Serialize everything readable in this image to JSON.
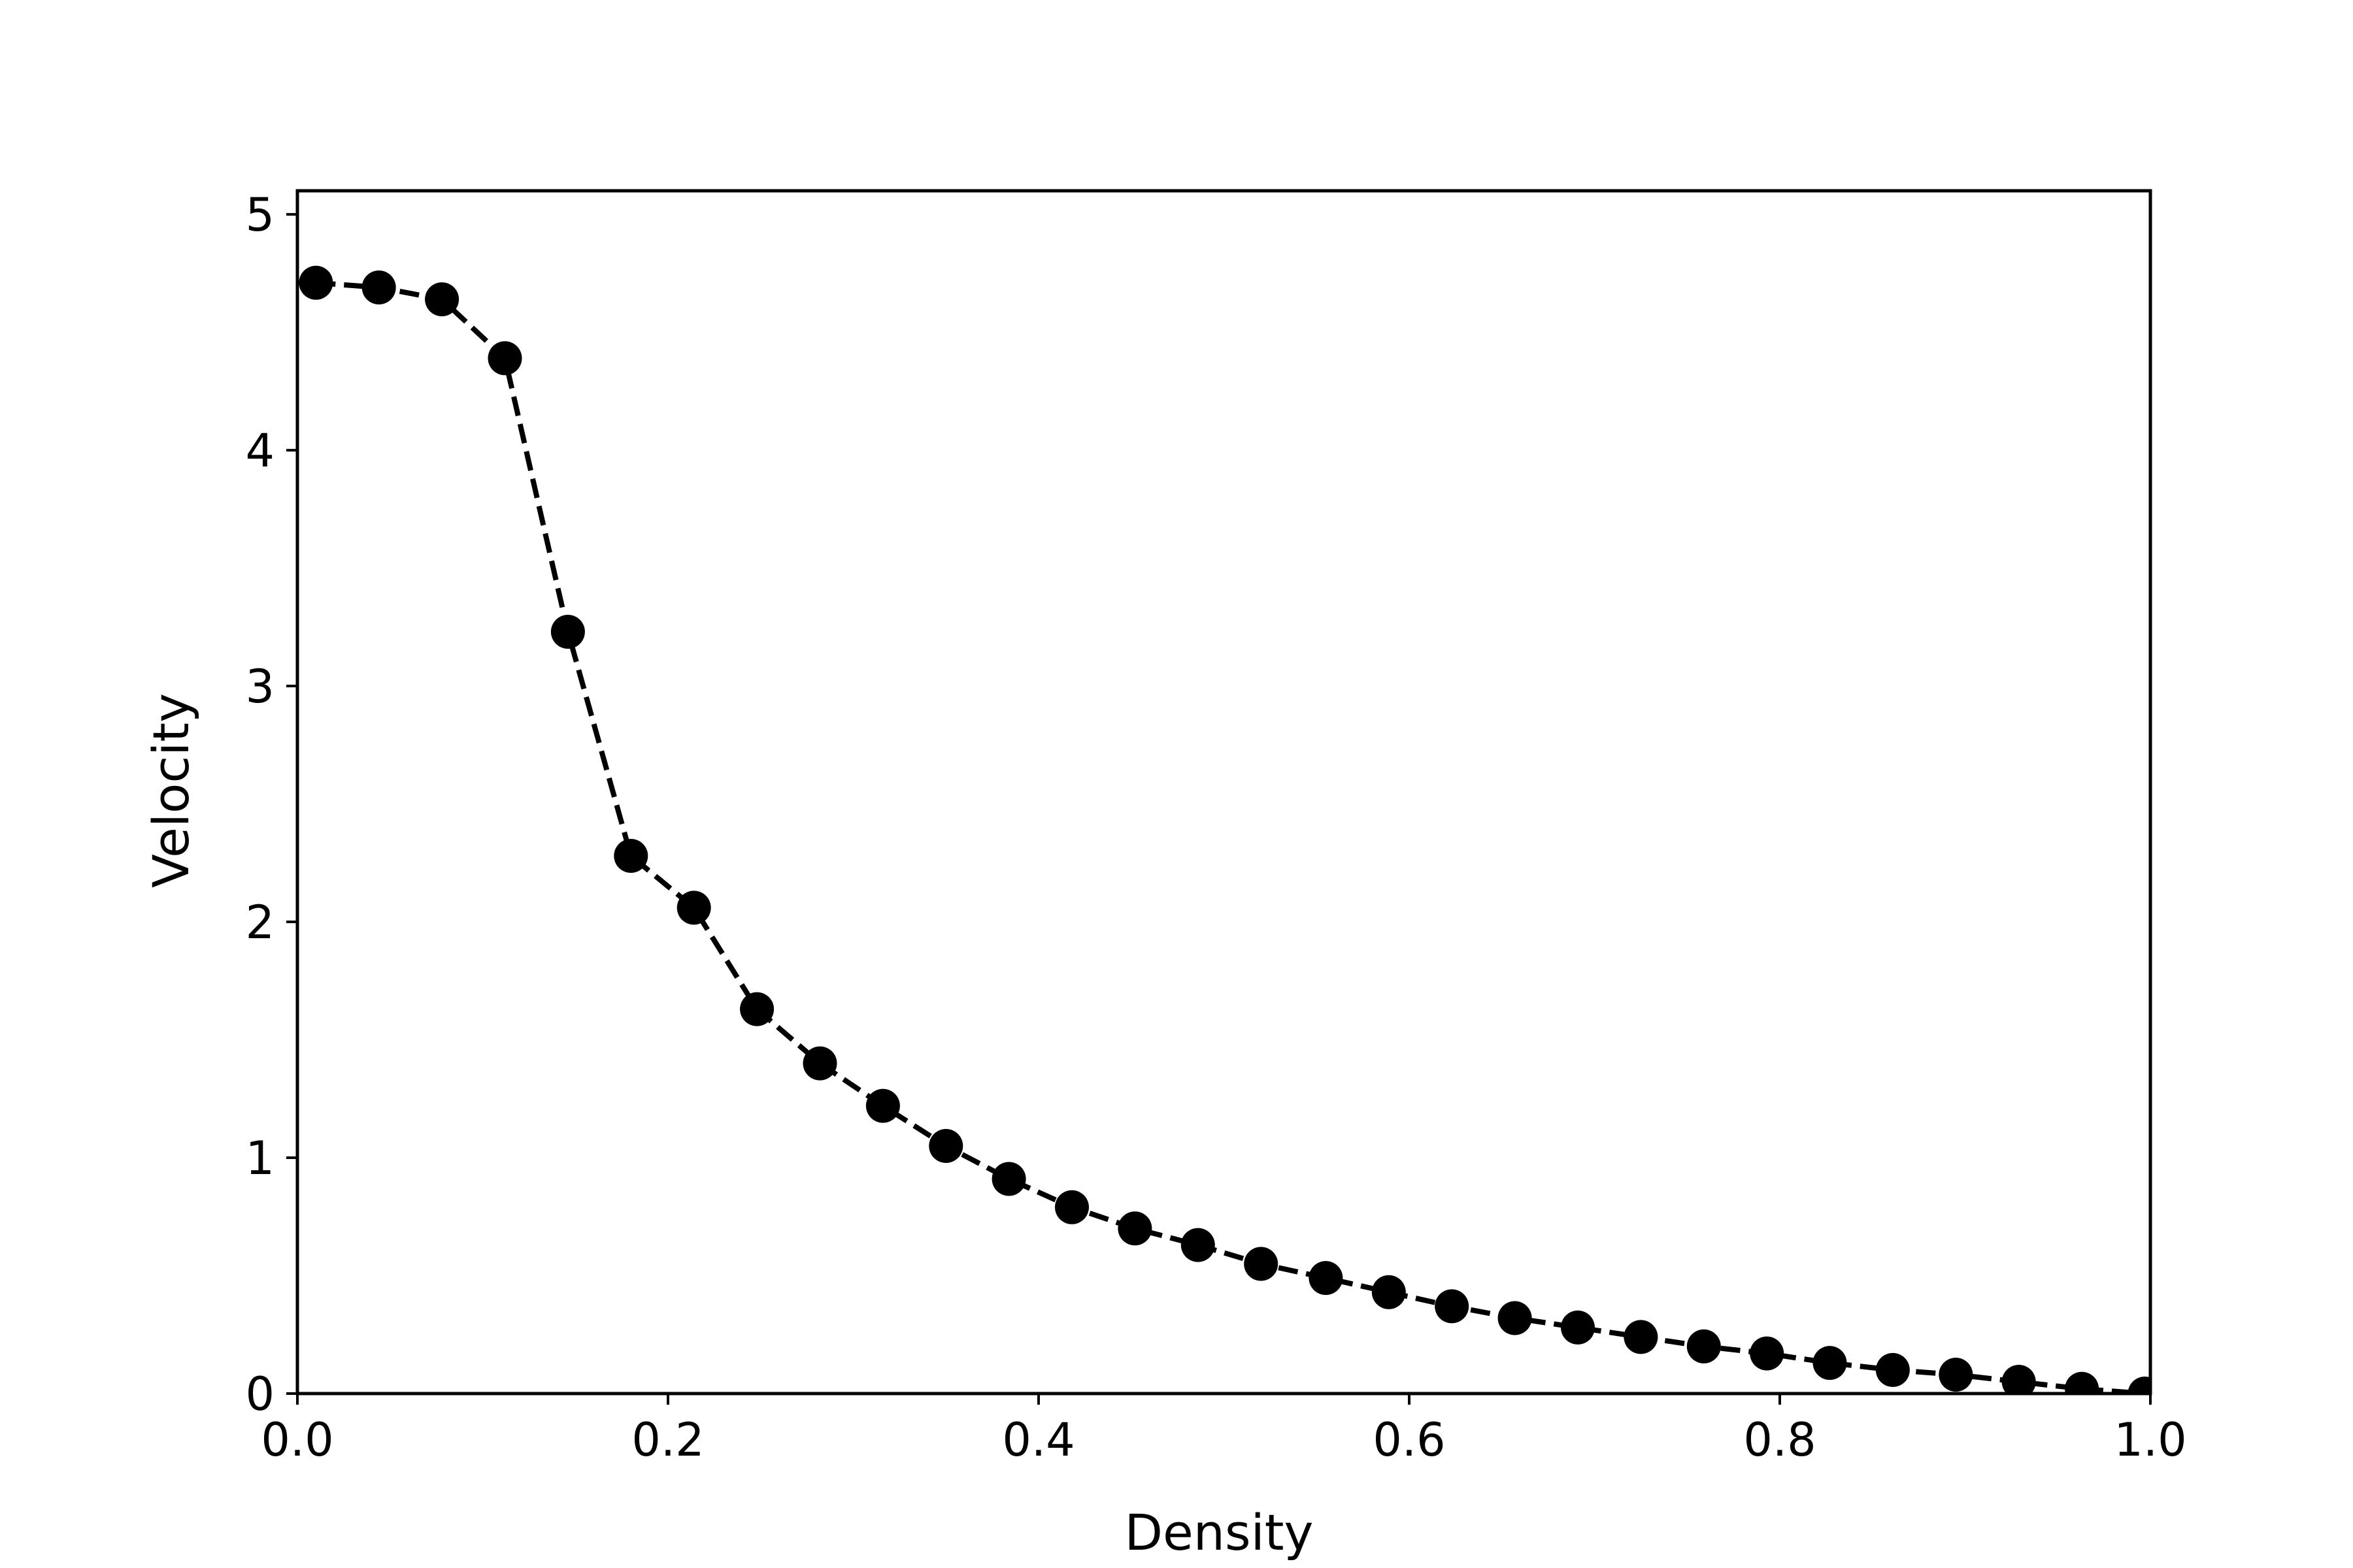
{
  "chart_data": {
    "type": "line",
    "title": "",
    "xlabel": "Density",
    "ylabel": "Velocity",
    "xlim": [
      0.0,
      1.0
    ],
    "ylim": [
      0,
      5.1
    ],
    "grid": false,
    "legend": "none",
    "line_color": "#000000",
    "line_style": "dashed",
    "marker": "filled-circle",
    "x_ticks": [
      0.0,
      0.2,
      0.4,
      0.6,
      0.8,
      1.0
    ],
    "x_tick_labels": [
      "0.0",
      "0.2",
      "0.4",
      "0.6",
      "0.8",
      "1.0"
    ],
    "y_ticks": [
      0,
      1,
      2,
      3,
      4,
      5
    ],
    "y_tick_labels": [
      "0",
      "1",
      "2",
      "3",
      "4",
      "5"
    ],
    "series": [
      {
        "x": [
          0.01,
          0.044,
          0.078,
          0.112,
          0.146,
          0.18,
          0.214,
          0.248,
          0.282,
          0.316,
          0.35,
          0.384,
          0.418,
          0.452,
          0.486,
          0.52,
          0.555,
          0.589,
          0.623,
          0.657,
          0.691,
          0.725,
          0.759,
          0.793,
          0.827,
          0.861,
          0.895,
          0.929,
          0.963,
          0.997
        ],
        "y": [
          4.71,
          4.69,
          4.64,
          4.39,
          3.23,
          2.28,
          2.06,
          1.63,
          1.4,
          1.22,
          1.05,
          0.91,
          0.79,
          0.7,
          0.63,
          0.55,
          0.49,
          0.43,
          0.37,
          0.32,
          0.28,
          0.24,
          0.2,
          0.17,
          0.13,
          0.1,
          0.08,
          0.05,
          0.02,
          0.0
        ]
      }
    ]
  }
}
